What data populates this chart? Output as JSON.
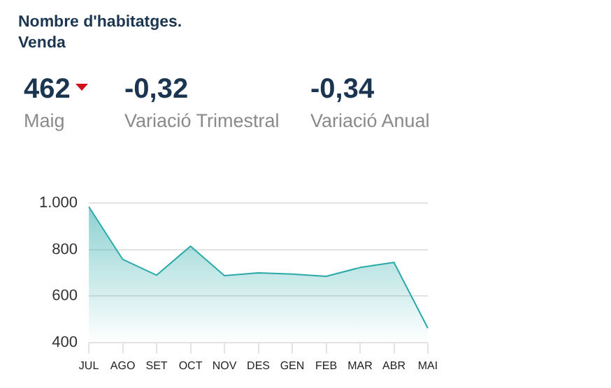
{
  "chart_data": {
    "type": "area",
    "title": "Nombre d'habitatges. Venda",
    "annotations": [
      "462",
      "Maig",
      "-0,32",
      "Variació Trimestral",
      "-0,34",
      "Variació Anual"
    ],
    "categories": [
      "JUL",
      "AGO",
      "SET",
      "OCT",
      "NOV",
      "DES",
      "GEN",
      "FEB",
      "MAR",
      "ABR",
      "MAI"
    ],
    "series": [
      {
        "color": "#2aa9a9",
        "values": [
          985,
          758,
          690,
          815,
          688,
          700,
          695,
          685,
          723,
          745,
          462
        ]
      }
    ],
    "ylim": [
      400,
      1000
    ],
    "yticks": [
      400,
      600,
      800,
      {
        "value": 1000,
        "label": "1.000"
      }
    ],
    "grid": "y",
    "legend": false,
    "marker": "none"
  }
}
